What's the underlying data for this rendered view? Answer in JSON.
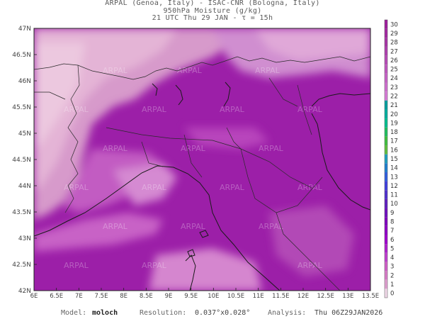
{
  "title": {
    "line1": "ARPAL (Genoa, Italy)  -  ISAC-CNR (Bologna, Italy)",
    "line2": "950hPa Moisture (g/kg)",
    "line3": "21 UTC Thu 29 JAN  -  τ = 15h"
  },
  "map": {
    "lat_labels": [
      "47N",
      "46.5N",
      "46N",
      "45.5N",
      "45N",
      "44.5N",
      "44N",
      "43.5N",
      "43N",
      "42.5N",
      "42N"
    ],
    "lon_labels": [
      "6E",
      "6.5E",
      "7E",
      "7.5E",
      "8E",
      "8.5E",
      "9E",
      "9.5E",
      "10E",
      "10.5E",
      "11E",
      "11.5E",
      "12E",
      "12.5E",
      "13E",
      "13.5E"
    ],
    "watermark": "ARPAL"
  },
  "colorbar": {
    "labels": [
      "30",
      "29",
      "28",
      "27",
      "26",
      "25",
      "24",
      "23",
      "22",
      "21",
      "20",
      "19",
      "18",
      "17",
      "16",
      "15",
      "14",
      "13",
      "12",
      "11",
      "10",
      "9",
      "8",
      "7",
      "6",
      "5",
      "4",
      "3",
      "2",
      "1",
      "0"
    ],
    "colors": [
      "#a01e9e",
      "#a428a2",
      "#a834a6",
      "#b040b0",
      "#b84cb8",
      "#c058c0",
      "#c864c8",
      "#d070d0",
      "#d87cd8",
      "#00a0a0",
      "#00b0a0",
      "#00c090",
      "#20c060",
      "#40c040",
      "#60c040",
      "#20a0c0",
      "#2080d0",
      "#3060e0",
      "#4040e0",
      "#5030d0",
      "#6020c0",
      "#7010c0",
      "#8000c0",
      "#9000c8",
      "#a000d0",
      "#b020d0",
      "#c040d0",
      "#d060c8",
      "#d87cc8",
      "#e0a0d0",
      "#f0d8e8"
    ]
  },
  "footer": {
    "model_label": "Model:",
    "model_value": "moloch",
    "resolution_label": "Resolution:",
    "resolution_value": "0.037°x0.028°",
    "analysis_label": "Analysis:",
    "analysis_value": "Thu 06Z29JAN2026"
  }
}
